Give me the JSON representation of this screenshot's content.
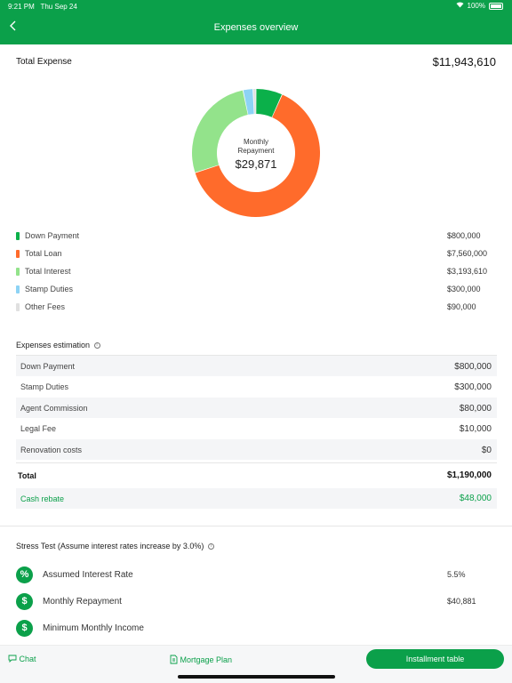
{
  "status": {
    "time": "9:21 PM",
    "date": "Thu Sep 24",
    "battery": "100%"
  },
  "nav": {
    "back_icon": "chevron-left-icon",
    "title": "Expenses overview"
  },
  "summary": {
    "label": "Total Expense",
    "value": "$11,943,610"
  },
  "donut": {
    "center_line1": "Monthly",
    "center_line2": "Repayment",
    "center_amount": "$29,871"
  },
  "chart_data": {
    "type": "pie",
    "categories": [
      "Down Payment",
      "Total Loan",
      "Total Interest",
      "Stamp Duties",
      "Other Fees"
    ],
    "values": [
      800000,
      7560000,
      3193610,
      300000,
      90000
    ],
    "colors": [
      "#0bb04a",
      "#ff6b2b",
      "#93e38b",
      "#8dd3f5",
      "#e0e0e0"
    ]
  },
  "legend": [
    {
      "name": "Down Payment",
      "amount": "$800,000",
      "color": "#0bb04a"
    },
    {
      "name": "Total Loan",
      "amount": "$7,560,000",
      "color": "#ff6b2b"
    },
    {
      "name": "Total Interest",
      "amount": "$3,193,610",
      "color": "#93e38b"
    },
    {
      "name": "Stamp Duties",
      "amount": "$300,000",
      "color": "#8dd3f5"
    },
    {
      "name": "Other Fees",
      "amount": "$90,000",
      "color": "#e0e0e0"
    }
  ],
  "estimation": {
    "title": "Expenses estimation",
    "rows": [
      {
        "name": "Down Payment",
        "value": "$800,000"
      },
      {
        "name": "Stamp Duties",
        "value": "$300,000"
      },
      {
        "name": "Agent Commission",
        "value": "$80,000"
      },
      {
        "name": "Legal Fee",
        "value": "$10,000"
      },
      {
        "name": "Renovation costs",
        "value": "$0"
      }
    ],
    "total_label": "Total",
    "total_value": "$1,190,000",
    "rebate_label": "Cash rebate",
    "rebate_value": "$48,000"
  },
  "stress": {
    "title": "Stress Test (Assume interest rates increase by 3.0%)",
    "rows": [
      {
        "icon": "percent-icon",
        "glyph": "%",
        "name": "Assumed Interest Rate",
        "value": "5.5%"
      },
      {
        "icon": "dollar-icon",
        "glyph": "$",
        "name": "Monthly Repayment",
        "value": "$40,881"
      },
      {
        "icon": "dollar-icon",
        "glyph": "$",
        "name": "Minimum Monthly Income",
        "value": ""
      }
    ]
  },
  "bottom": {
    "chat_label": "Chat",
    "plan_label": "Mortgage Plan",
    "installment_label": "Installment table"
  },
  "colors": {
    "brand": "#0ba04a"
  }
}
